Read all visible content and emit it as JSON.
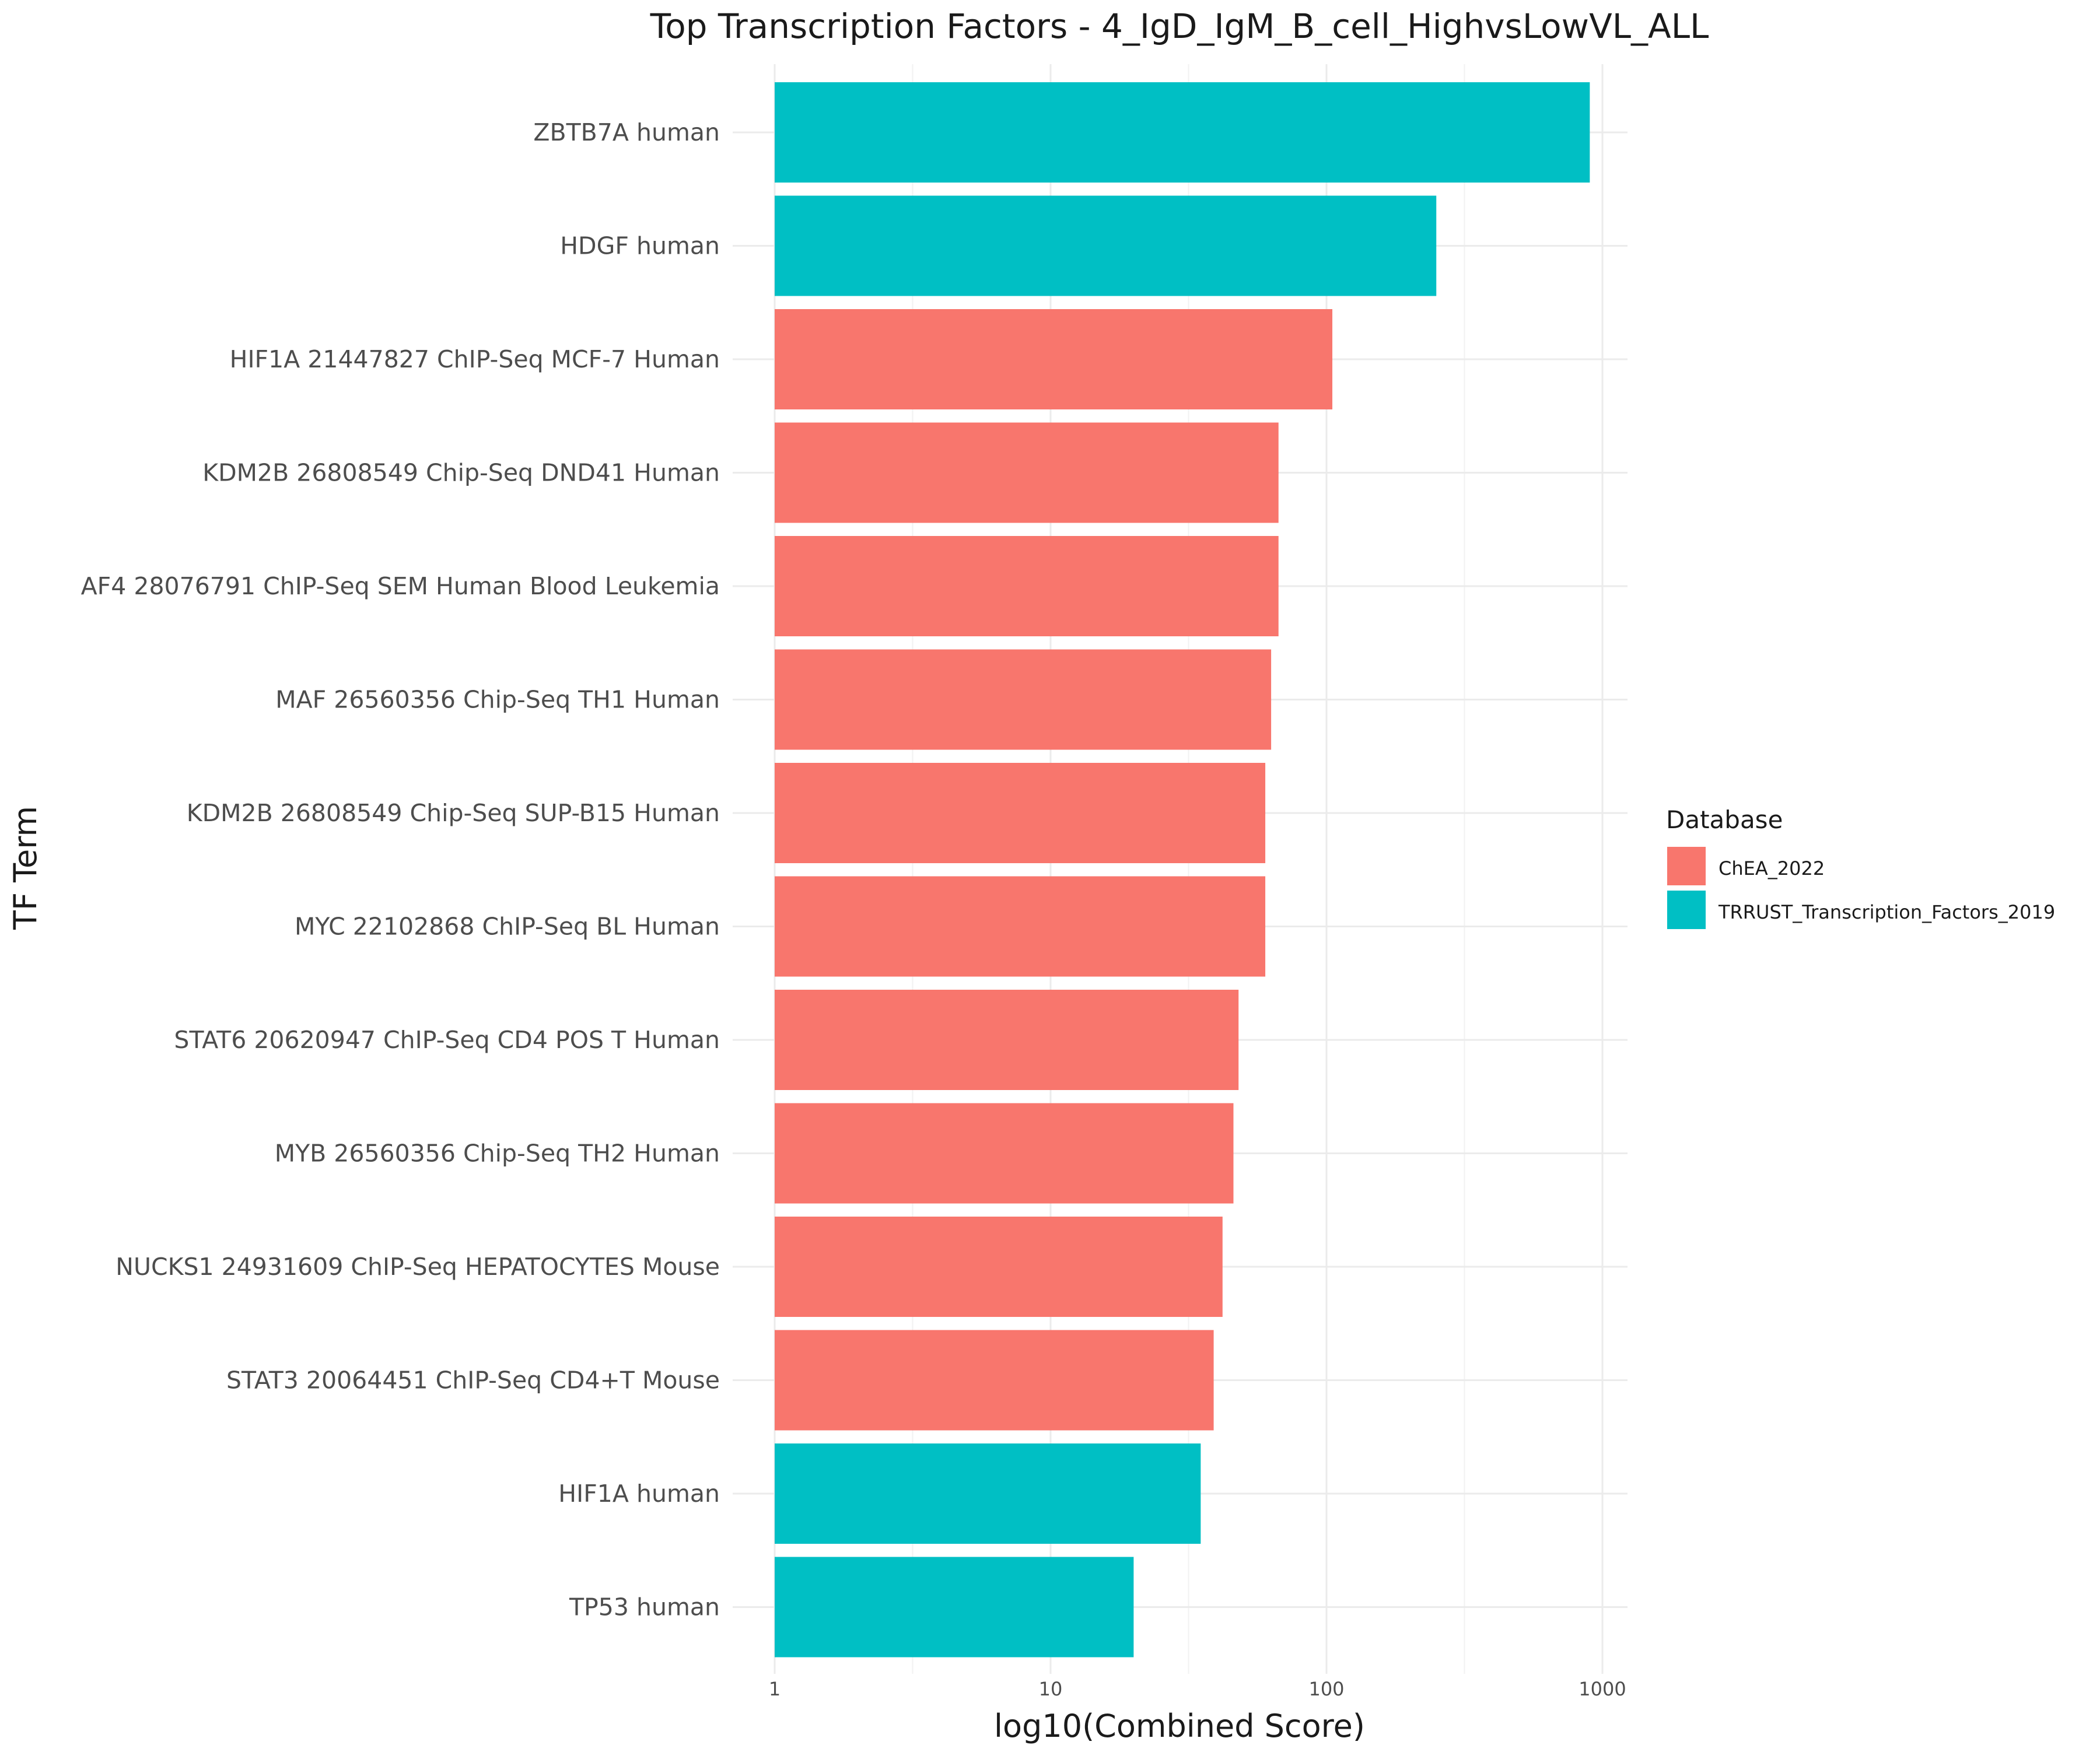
{
  "chart_data": {
    "type": "bar",
    "orientation": "horizontal",
    "title": "Top Transcription Factors - 4_IgD_IgM_B_cell_HighvsLowVL_ALL",
    "xlabel": "log10(Combined Score)",
    "ylabel": "TF Term",
    "x_scale": "log10",
    "xlim": [
      1,
      1000
    ],
    "x_ticks": [
      1,
      10,
      100,
      1000
    ],
    "x_tick_labels": [
      "1",
      "10",
      "100",
      "1000"
    ],
    "grid": true,
    "legend": {
      "title": "Database",
      "position": "right",
      "entries": [
        {
          "name": "ChEA_2022",
          "color": "#F8766D"
        },
        {
          "name": "TRRUST_Transcription_Factors_2019",
          "color": "#00BFC4"
        }
      ]
    },
    "bars": [
      {
        "label": "ZBTB7A human",
        "value": 900,
        "database": "TRRUST_Transcription_Factors_2019"
      },
      {
        "label": "HDGF human",
        "value": 250,
        "database": "TRRUST_Transcription_Factors_2019"
      },
      {
        "label": "HIF1A 21447827 ChIP-Seq MCF-7 Human",
        "value": 105,
        "database": "ChEA_2022"
      },
      {
        "label": "KDM2B 26808549 Chip-Seq DND41 Human",
        "value": 67,
        "database": "ChEA_2022"
      },
      {
        "label": "AF4 28076791 ChIP-Seq SEM Human Blood Leukemia",
        "value": 67,
        "database": "ChEA_2022"
      },
      {
        "label": "MAF 26560356 Chip-Seq TH1 Human",
        "value": 63,
        "database": "ChEA_2022"
      },
      {
        "label": "KDM2B 26808549 Chip-Seq SUP-B15 Human",
        "value": 60,
        "database": "ChEA_2022"
      },
      {
        "label": "MYC 22102868 ChIP-Seq BL Human",
        "value": 60,
        "database": "ChEA_2022"
      },
      {
        "label": "STAT6 20620947 ChIP-Seq CD4 POS T Human",
        "value": 48,
        "database": "ChEA_2022"
      },
      {
        "label": "MYB 26560356 Chip-Seq TH2 Human",
        "value": 46,
        "database": "ChEA_2022"
      },
      {
        "label": "NUCKS1 24931609 ChIP-Seq HEPATOCYTES Mouse",
        "value": 42,
        "database": "ChEA_2022"
      },
      {
        "label": "STAT3 20064451 ChIP-Seq CD4+T Mouse",
        "value": 39,
        "database": "ChEA_2022"
      },
      {
        "label": "HIF1A human",
        "value": 35,
        "database": "TRRUST_Transcription_Factors_2019"
      },
      {
        "label": "TP53 human",
        "value": 20,
        "database": "TRRUST_Transcription_Factors_2019"
      }
    ]
  }
}
